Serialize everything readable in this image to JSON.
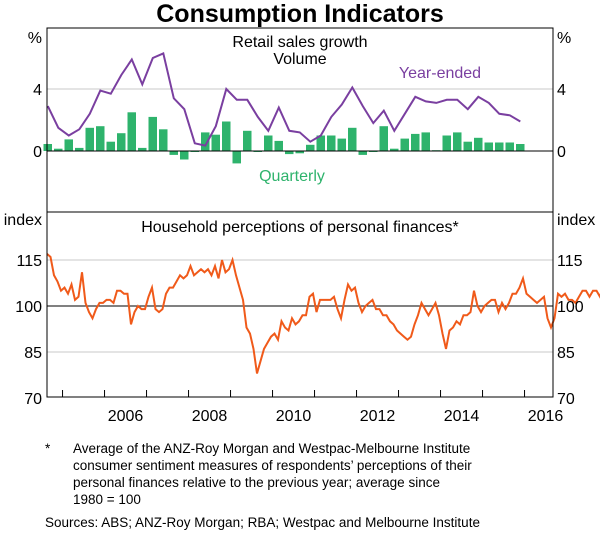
{
  "chart_data": [
    {
      "type": "bar+line",
      "title": "Consumption Indicators",
      "panel_title": "Retail sales growth",
      "panel_subtitle": "Volume",
      "ylabel_left": "%",
      "ylabel_right": "%",
      "ylim": [
        -3.9,
        8
      ],
      "yticks": [
        0,
        4
      ],
      "grid": true,
      "x_start": 2004.5,
      "quarter_step": 0.25,
      "series": [
        {
          "name": "Quarterly",
          "kind": "bar",
          "color": "#2eb36c",
          "values": [
            0.45,
            0.15,
            0.75,
            0.2,
            1.5,
            1.6,
            0.6,
            1.15,
            2.5,
            0.2,
            2.2,
            1.4,
            -0.25,
            -0.55,
            -0.05,
            1.2,
            1.05,
            1.9,
            -0.8,
            1.3,
            -0.05,
            1.0,
            0.65,
            -0.2,
            -0.15,
            0.4,
            1.0,
            1.0,
            0.8,
            1.5,
            -0.25,
            0.0,
            1.6,
            0.15,
            0.8,
            1.1,
            1.2,
            0.05,
            1.0,
            1.2,
            0.6,
            0.85,
            0.55,
            0.55,
            0.55,
            0.45
          ]
        },
        {
          "name": "Year-ended",
          "kind": "line",
          "color": "#7a3fa0",
          "values": [
            2.9,
            1.5,
            1.0,
            1.4,
            2.4,
            3.9,
            3.7,
            4.9,
            5.9,
            4.3,
            6.0,
            6.3,
            3.4,
            2.7,
            0.5,
            0.35,
            1.6,
            4.0,
            3.3,
            3.3,
            2.2,
            1.3,
            2.8,
            1.3,
            1.2,
            0.6,
            1.0,
            2.2,
            3.0,
            4.1,
            2.9,
            1.8,
            2.6,
            1.3,
            2.4,
            3.5,
            3.2,
            3.1,
            3.3,
            3.3,
            2.7,
            3.5,
            3.1,
            2.4,
            2.3,
            1.9
          ]
        }
      ],
      "annotations": [
        "Year-ended",
        "Quarterly"
      ]
    },
    {
      "type": "line",
      "panel_title": "Household perceptions of personal finances*",
      "ylabel_left": "index",
      "ylabel_right": "index",
      "ylim": [
        70,
        130
      ],
      "yticks": [
        70,
        85,
        100,
        115
      ],
      "grid": true,
      "x_start": 2004.5,
      "month_step": 0.08333,
      "xticks": [
        "2006",
        "2008",
        "2010",
        "2012",
        "2014",
        "2016"
      ],
      "series": [
        {
          "name": "Household perceptions of personal finances",
          "color": "#f05a1a",
          "values": [
            117,
            116,
            110,
            108,
            105,
            106,
            104,
            107,
            102,
            103,
            111,
            101,
            98,
            96,
            99,
            101,
            101,
            102,
            102,
            101,
            105,
            105,
            104,
            104,
            94,
            98,
            100,
            99,
            99,
            103,
            106,
            99,
            98,
            99,
            104,
            106,
            106,
            108,
            110,
            109,
            110,
            113,
            110,
            111,
            112,
            111,
            112,
            110,
            113,
            109,
            115,
            111,
            112,
            115,
            110,
            106,
            102,
            93,
            91,
            86,
            78,
            82,
            86,
            88,
            90,
            91,
            89,
            95,
            93,
            92,
            96,
            94,
            95,
            97,
            97,
            103,
            104,
            98,
            102,
            102,
            102,
            102,
            103,
            99,
            96,
            102,
            107,
            105,
            106,
            101,
            98,
            100,
            101,
            102,
            99,
            99,
            97,
            97,
            95,
            94,
            92,
            91,
            90,
            89,
            90,
            94,
            97,
            101,
            99,
            97,
            99,
            101,
            97,
            91,
            86,
            92,
            93,
            95,
            94,
            97,
            97,
            98,
            105,
            100,
            98,
            100,
            101,
            102,
            102,
            98,
            101,
            99,
            101,
            104,
            104,
            106,
            109,
            104,
            103,
            102,
            101,
            102,
            103,
            96,
            93,
            96,
            104,
            103,
            104,
            102,
            102,
            101,
            103,
            105,
            105,
            103,
            105,
            105,
            103,
            107,
            106,
            105,
            105,
            106,
            104,
            105,
            102,
            103,
            101,
            101,
            104,
            102
          ],
          "reference_line": 100
        }
      ]
    }
  ],
  "footnote_marker": "*",
  "footnote": "Average of the ANZ-Roy Morgan and Westpac-Melbourne Institute consumer sentiment measures of respondents’ perceptions of their personal finances relative to the previous year; average since 1980 = 100",
  "footnote_lines": [
    "Average of the ANZ-Roy Morgan and Westpac-Melbourne Institute",
    "consumer sentiment measures of respondents’ perceptions of their",
    "personal finances relative to the previous year; average since",
    "1980 = 100"
  ],
  "sources": "Sources:  ABS; ANZ-Roy Morgan; RBA; Westpac and Melbourne Institute"
}
